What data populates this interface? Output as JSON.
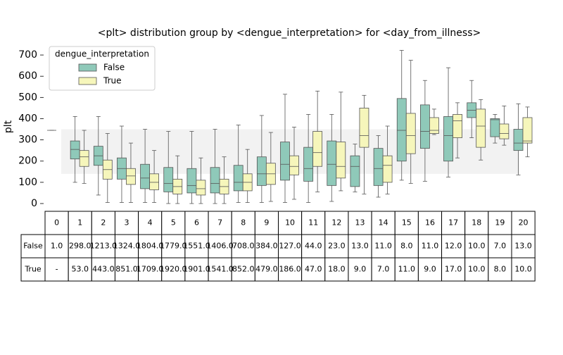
{
  "chart_data": {
    "type": "box",
    "title": "<plt> distribution group by <dengue_interpretation> for <day_from_illness>",
    "y_label": "plt",
    "legend_title": "dengue_interpretation",
    "legend_position": "upper-left",
    "ylim": [
      -20,
      760
    ],
    "yticks": [
      0,
      100,
      200,
      300,
      400,
      500,
      600,
      700
    ],
    "band": [
      140,
      350
    ],
    "band_color": "#f2f2f2",
    "series": [
      {
        "name": "False",
        "color": "#8fc9b9",
        "values": [
          [
            345,
            345,
            345,
            345,
            345
          ],
          [
            100,
            210,
            255,
            295,
            410
          ],
          [
            40,
            180,
            225,
            270,
            410
          ],
          [
            5,
            115,
            165,
            215,
            365
          ],
          [
            5,
            70,
            120,
            185,
            350
          ],
          [
            0,
            55,
            95,
            170,
            340
          ],
          [
            0,
            50,
            85,
            165,
            340
          ],
          [
            0,
            50,
            95,
            170,
            350
          ],
          [
            5,
            60,
            100,
            180,
            370
          ],
          [
            5,
            85,
            140,
            220,
            415
          ],
          [
            5,
            110,
            185,
            290,
            515
          ],
          [
            5,
            105,
            165,
            265,
            420
          ],
          [
            10,
            85,
            185,
            295,
            420
          ],
          [
            55,
            80,
            175,
            225,
            280
          ],
          [
            30,
            85,
            165,
            260,
            320
          ],
          [
            110,
            200,
            345,
            495,
            722
          ],
          [
            105,
            260,
            340,
            465,
            580
          ],
          [
            125,
            200,
            320,
            410,
            640
          ],
          [
            310,
            405,
            440,
            475,
            580
          ],
          [
            285,
            315,
            395,
            400,
            420
          ],
          [
            135,
            250,
            285,
            350,
            470
          ]
        ]
      },
      {
        "name": "True",
        "color": "#f6f6bb",
        "values": [
          null,
          [
            95,
            175,
            220,
            250,
            345
          ],
          [
            5,
            115,
            160,
            205,
            330
          ],
          [
            5,
            90,
            130,
            165,
            285
          ],
          [
            5,
            65,
            100,
            140,
            250
          ],
          [
            0,
            45,
            80,
            115,
            225
          ],
          [
            0,
            40,
            70,
            110,
            215
          ],
          [
            0,
            45,
            80,
            115,
            220
          ],
          [
            5,
            60,
            100,
            140,
            255
          ],
          [
            10,
            90,
            140,
            190,
            335
          ],
          [
            20,
            135,
            175,
            225,
            360
          ],
          [
            55,
            175,
            240,
            340,
            530
          ],
          [
            60,
            120,
            175,
            290,
            525
          ],
          [
            45,
            265,
            320,
            450,
            510
          ],
          [
            45,
            100,
            180,
            225,
            365
          ],
          [
            95,
            235,
            320,
            425,
            675
          ],
          [
            325,
            330,
            345,
            405,
            445
          ],
          [
            215,
            310,
            390,
            420,
            475
          ],
          [
            205,
            265,
            365,
            445,
            490
          ],
          [
            275,
            305,
            330,
            375,
            460
          ],
          [
            220,
            285,
            295,
            405,
            455
          ]
        ]
      }
    ]
  },
  "table": {
    "columns": [
      "0",
      "1",
      "2",
      "3",
      "4",
      "5",
      "6",
      "7",
      "8",
      "9",
      "10",
      "11",
      "12",
      "13",
      "14",
      "15",
      "16",
      "17",
      "18",
      "19",
      "20"
    ],
    "rows": [
      {
        "label": "False",
        "cells": [
          "1.0",
          "298.0",
          "1213.0",
          "1324.0",
          "1804.0",
          "1779.0",
          "1551.0",
          "1406.0",
          "708.0",
          "384.0",
          "127.0",
          "44.0",
          "23.0",
          "13.0",
          "11.0",
          "8.0",
          "11.0",
          "12.0",
          "10.0",
          "7.0",
          "13.0"
        ]
      },
      {
        "label": "True",
        "cells": [
          "-",
          "53.0",
          "443.0",
          "851.0",
          "1709.0",
          "1920.0",
          "1901.0",
          "1541.0",
          "852.0",
          "479.0",
          "186.0",
          "47.0",
          "18.0",
          "9.0",
          "7.0",
          "11.0",
          "9.0",
          "17.0",
          "10.0",
          "8.0",
          "10.0"
        ]
      }
    ]
  }
}
